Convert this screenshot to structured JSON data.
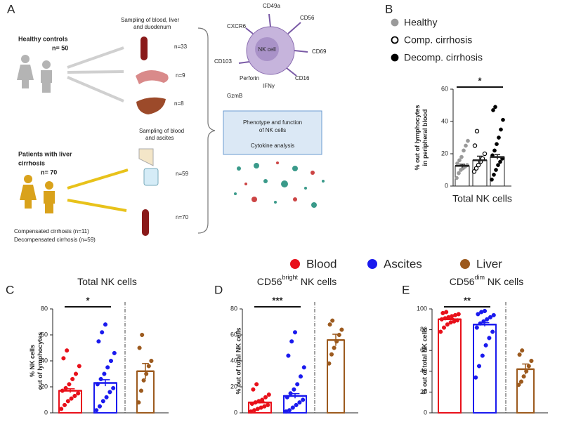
{
  "panel_a": {
    "label": "A",
    "healthy_title": "Healthy controls",
    "healthy_n": "n= 50",
    "sampling1": [
      "Sampling of blood, liver",
      "and duodenum"
    ],
    "n1": [
      "n=33",
      "n=9",
      "n=8"
    ],
    "patients_title": [
      "Patients with liver",
      "cirrhosis"
    ],
    "patients_n": "n= 70",
    "sampling2": [
      "Sampling of blood",
      "and ascites"
    ],
    "n2": [
      "n=59",
      "n=70"
    ],
    "comp": "Compensated cirrhosis (n=11)",
    "decomp": "Decompensated cirrhosis (n=59)",
    "cell": "NK cell",
    "markers": [
      "CD49a",
      "CD56",
      "CXCR6",
      "CD69",
      "CD103",
      "CD16",
      "Perforin",
      "IFNγ",
      "GzmB"
    ],
    "box": [
      "Phenotype and function",
      "of NK cells",
      "Cytokine analysis"
    ]
  },
  "legend": [
    {
      "name": "Blood",
      "color": "#e8101a"
    },
    {
      "name": "Ascites",
      "color": "#1a1aee"
    },
    {
      "name": "Liver",
      "color": "#9c5a1e"
    }
  ],
  "chart_data": [
    {
      "type": "bar",
      "label": "B",
      "xlabel": "Total NK cells",
      "ylabel": [
        "% out of lymphocytes",
        "in peripheral blood"
      ],
      "ylim": [
        0,
        60
      ],
      "yticks": [
        0,
        20,
        40,
        60
      ],
      "significance": [
        {
          "label": "*",
          "between": [
            0,
            2
          ]
        }
      ],
      "series": [
        {
          "name": "Healthy",
          "color": "#9a9a9a",
          "marker": "filled",
          "value": 12.5,
          "error": 1,
          "points": [
            5,
            8,
            10,
            11,
            12,
            13,
            14,
            16,
            18,
            22,
            25,
            28
          ]
        },
        {
          "name": "Comp. cirrhosis",
          "color": "#000000",
          "marker": "open",
          "value": 16,
          "error": 2.5,
          "points": [
            9,
            11,
            13,
            15,
            17,
            20,
            25,
            34
          ]
        },
        {
          "name": "Decomp. cirrhosis",
          "color": "#000000",
          "marker": "filled",
          "value": 18,
          "error": 1.5,
          "points": [
            4,
            7,
            10,
            13,
            15,
            17,
            19,
            22,
            26,
            30,
            35,
            41,
            47,
            49
          ]
        }
      ]
    },
    {
      "type": "bar",
      "label": "C",
      "title": "Total NK cells",
      "ylabel": [
        "% NK cells",
        "out of lymphocytes"
      ],
      "ylim": [
        0,
        80
      ],
      "yticks": [
        0,
        20,
        40,
        60,
        80
      ],
      "divider": true,
      "significance": [
        {
          "label": "*",
          "between": [
            0,
            1
          ]
        }
      ],
      "series": [
        {
          "color": "#e8101a",
          "value": 17,
          "error": 1.5,
          "points": [
            3,
            6,
            9,
            11,
            13,
            15,
            17,
            19,
            22,
            26,
            30,
            36,
            42,
            48
          ]
        },
        {
          "color": "#1a1aee",
          "value": 23,
          "error": 2.5,
          "points": [
            2,
            5,
            9,
            12,
            16,
            19,
            22,
            26,
            30,
            35,
            40,
            46,
            55,
            62,
            68
          ]
        },
        {
          "color": "#9c5a1e",
          "value": 32,
          "error": 6,
          "points": [
            8,
            17,
            25,
            30,
            36,
            40,
            50,
            60
          ]
        }
      ]
    },
    {
      "type": "bar",
      "label": "D",
      "title": "CD56",
      "title_sup": "bright",
      "title_end": " NK cells",
      "ylabel": [
        "% out of total NK cells"
      ],
      "ylim": [
        0,
        80
      ],
      "yticks": [
        0,
        20,
        40,
        60,
        80
      ],
      "divider": true,
      "significance": [
        {
          "label": "***",
          "between": [
            0,
            1
          ]
        }
      ],
      "series": [
        {
          "color": "#e8101a",
          "value": 8,
          "error": 0.8,
          "points": [
            1,
            2,
            3,
            4,
            5,
            6,
            7,
            8,
            9,
            10,
            12,
            14,
            18,
            22
          ]
        },
        {
          "color": "#1a1aee",
          "value": 13,
          "error": 1.8,
          "points": [
            1,
            2,
            4,
            6,
            8,
            10,
            12,
            15,
            18,
            22,
            28,
            35,
            44,
            55,
            62
          ]
        },
        {
          "color": "#9c5a1e",
          "value": 56,
          "error": 4.5,
          "points": [
            38,
            45,
            50,
            55,
            60,
            64,
            68,
            71
          ]
        }
      ]
    },
    {
      "type": "bar",
      "label": "E",
      "title": "CD56",
      "title_sup": "dim",
      "title_end": " NK cells",
      "ylabel": [
        "% out of total NK cells"
      ],
      "ylim": [
        0,
        100
      ],
      "yticks": [
        0,
        20,
        40,
        60,
        80,
        100
      ],
      "divider": true,
      "significance": [
        {
          "label": "**",
          "between": [
            0,
            1
          ]
        }
      ],
      "series": [
        {
          "color": "#e8101a",
          "value": 90,
          "error": 0.8,
          "points": [
            78,
            82,
            85,
            87,
            88,
            89,
            90,
            91,
            92,
            93,
            94,
            95,
            96,
            97
          ]
        },
        {
          "color": "#1a1aee",
          "value": 85,
          "error": 1.8,
          "points": [
            34,
            45,
            55,
            65,
            72,
            78,
            82,
            86,
            88,
            90,
            92,
            94,
            95,
            97,
            98
          ]
        },
        {
          "color": "#9c5a1e",
          "value": 42,
          "error": 5,
          "points": [
            27,
            30,
            35,
            40,
            45,
            50,
            56,
            60
          ]
        }
      ]
    }
  ]
}
